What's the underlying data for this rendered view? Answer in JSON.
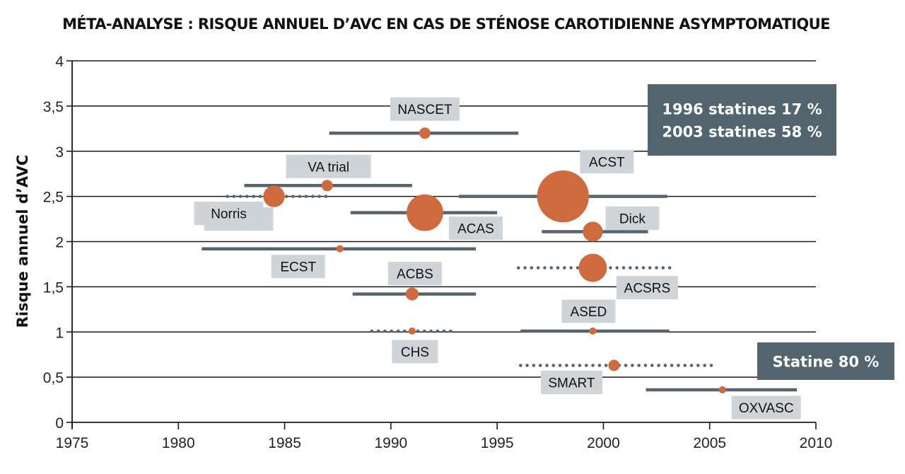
{
  "chart_data": {
    "type": "scatter",
    "subtype": "forest-plot-bubble",
    "title": "MÉTA-ANALYSE : RISQUE ANNUEL D’AVC EN CAS DE STÉNOSE CAROTIDIENNE ASYMPTOMATIQUE",
    "xlabel": "",
    "ylabel": "Risque annuel d’AVC",
    "xlim": [
      1975,
      2010
    ],
    "ylim": [
      0,
      4
    ],
    "xticks": [
      1975,
      1980,
      1985,
      1990,
      1995,
      2000,
      2005,
      2010
    ],
    "xtick_labels": [
      "1975",
      "1980",
      "1985",
      "1990",
      "1995",
      "2000",
      "2005",
      "2010"
    ],
    "yticks": [
      0,
      0.5,
      1,
      1.5,
      2,
      2.5,
      3,
      3.5,
      4
    ],
    "ytick_labels": [
      "0",
      "0,5",
      "1",
      "1,5",
      "2",
      "2,5",
      "3",
      "3,5",
      "4"
    ],
    "grid": "horizontal",
    "colors": {
      "point": "#cf6a3f",
      "range": "#56656d",
      "label_box": "#cfd4d8",
      "note_box": "#52656e"
    },
    "series": [
      {
        "name": "NASCET",
        "x": 1991.6,
        "y": 3.2,
        "start": 1987.1,
        "end": 1996.0,
        "style": "solid",
        "size": 1.0
      },
      {
        "name": "VA trial",
        "x": 1987.0,
        "y": 2.62,
        "start": 1983.1,
        "end": 1991.0,
        "style": "solid",
        "size": 1.0
      },
      {
        "name": "Norris",
        "x": 1984.5,
        "y": 2.5,
        "start": 1982.3,
        "end": 1987.0,
        "style": "dotted",
        "size": 3.6
      },
      {
        "name": "ACAS",
        "x": 1991.6,
        "y": 2.32,
        "start": 1988.1,
        "end": 1995.0,
        "style": "solid",
        "size": 10.5
      },
      {
        "name": "ACST",
        "x": 1998.1,
        "y": 2.5,
        "start": 1993.2,
        "end": 2003.0,
        "style": "solid",
        "size": 21.0
      },
      {
        "name": "Dick",
        "x": 1999.5,
        "y": 2.11,
        "start": 1997.1,
        "end": 2002.1,
        "style": "solid",
        "size": 3.1
      },
      {
        "name": "ECST",
        "x": 1987.6,
        "y": 1.92,
        "start": 1981.1,
        "end": 1994.0,
        "style": "solid",
        "size": 0.4
      },
      {
        "name": "ACSRS",
        "x": 1999.5,
        "y": 1.71,
        "start": 1996.0,
        "end": 2003.3,
        "style": "dotted",
        "size": 6.2
      },
      {
        "name": "ACBS",
        "x": 1991.0,
        "y": 1.42,
        "start": 1988.2,
        "end": 1994.0,
        "style": "solid",
        "size": 1.3
      },
      {
        "name": "CHS",
        "x": 1991.0,
        "y": 1.01,
        "start": 1989.1,
        "end": 1993.1,
        "style": "dotted",
        "size": 0.4
      },
      {
        "name": "ASED",
        "x": 1999.5,
        "y": 1.01,
        "start": 1996.1,
        "end": 2003.1,
        "style": "solid",
        "size": 0.4
      },
      {
        "name": "SMART",
        "x": 2000.5,
        "y": 0.63,
        "start": 1996.1,
        "end": 2005.3,
        "style": "dotted",
        "size": 1.0
      },
      {
        "name": "OXVASC",
        "x": 2005.6,
        "y": 0.36,
        "start": 2002.0,
        "end": 2009.1,
        "style": "solid",
        "size": 0.4
      }
    ],
    "annotations": [
      {
        "lines": [
          "1996 statines 17 %",
          "2003 statines 58 %"
        ]
      },
      {
        "lines": [
          "Statine 80 %"
        ]
      }
    ]
  }
}
